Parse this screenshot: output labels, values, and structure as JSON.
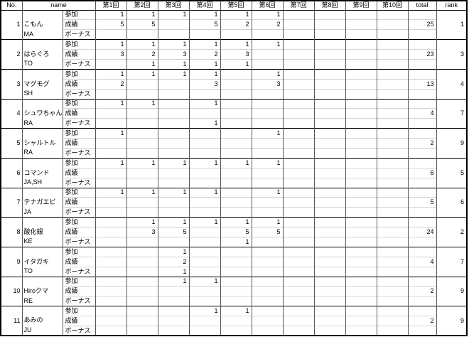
{
  "header": {
    "no": "No.",
    "name": "name",
    "rounds": [
      "第1回",
      "第2回",
      "第3回",
      "第4回",
      "第5回",
      "第6回",
      "第7回",
      "第8回",
      "第9回",
      "第10回"
    ],
    "total": "total",
    "rank": "rank"
  },
  "sublabels": [
    "参加",
    "成績",
    "ボーナス"
  ],
  "players": [
    {
      "no": "1",
      "name": "こもん",
      "code": "MA",
      "sanka": [
        "1",
        "1",
        "1",
        "1",
        "1",
        "1",
        "",
        "",
        "",
        ""
      ],
      "seiseki": [
        "5",
        "5",
        "",
        "5",
        "2",
        "2",
        "",
        "",
        "",
        ""
      ],
      "bonus": [
        "",
        "",
        "",
        "",
        "",
        "",
        "",
        "",
        "",
        ""
      ],
      "total": "25",
      "rank": "1"
    },
    {
      "no": "2",
      "name": "はらぐろ",
      "code": "TO",
      "sanka": [
        "1",
        "1",
        "1",
        "1",
        "1",
        "1",
        "",
        "",
        "",
        ""
      ],
      "seiseki": [
        "3",
        "2",
        "3",
        "2",
        "3",
        "",
        "",
        "",
        "",
        ""
      ],
      "bonus": [
        "",
        "1",
        "1",
        "1",
        "1",
        "",
        "",
        "",
        "",
        ""
      ],
      "total": "23",
      "rank": "3"
    },
    {
      "no": "3",
      "name": "マグモグ",
      "code": "SH",
      "sanka": [
        "1",
        "1",
        "1",
        "1",
        "",
        "1",
        "",
        "",
        "",
        ""
      ],
      "seiseki": [
        "2",
        "",
        "",
        "3",
        "",
        "3",
        "",
        "",
        "",
        ""
      ],
      "bonus": [
        "",
        "",
        "",
        "",
        "",
        "",
        "",
        "",
        "",
        ""
      ],
      "total": "13",
      "rank": "4"
    },
    {
      "no": "4",
      "name": "シュワちゃん",
      "code": "RA",
      "sanka": [
        "1",
        "1",
        "",
        "1",
        "",
        "",
        "",
        "",
        "",
        ""
      ],
      "seiseki": [
        "",
        "",
        "",
        "",
        "",
        "",
        "",
        "",
        "",
        ""
      ],
      "bonus": [
        "",
        "",
        "",
        "1",
        "",
        "",
        "",
        "",
        "",
        ""
      ],
      "total": "4",
      "rank": "7"
    },
    {
      "no": "5",
      "name": "シャルトル",
      "code": "RA",
      "sanka": [
        "1",
        "",
        "",
        "",
        "",
        "1",
        "",
        "",
        "",
        ""
      ],
      "seiseki": [
        "",
        "",
        "",
        "",
        "",
        "",
        "",
        "",
        "",
        ""
      ],
      "bonus": [
        "",
        "",
        "",
        "",
        "",
        "",
        "",
        "",
        "",
        ""
      ],
      "total": "2",
      "rank": "9"
    },
    {
      "no": "6",
      "name": "コマンド",
      "code": "JA,SH",
      "sanka": [
        "1",
        "1",
        "1",
        "1",
        "1",
        "1",
        "",
        "",
        "",
        ""
      ],
      "seiseki": [
        "",
        "",
        "",
        "",
        "",
        "",
        "",
        "",
        "",
        ""
      ],
      "bonus": [
        "",
        "",
        "",
        "",
        "",
        "",
        "",
        "",
        "",
        ""
      ],
      "total": "6",
      "rank": "5"
    },
    {
      "no": "7",
      "name": "テナガエビ",
      "code": "JA",
      "sanka": [
        "1",
        "1",
        "1",
        "1",
        "",
        "1",
        "",
        "",
        "",
        ""
      ],
      "seiseki": [
        "",
        "",
        "",
        "",
        "",
        "",
        "",
        "",
        "",
        ""
      ],
      "bonus": [
        "",
        "",
        "",
        "",
        "",
        "",
        "",
        "",
        "",
        ""
      ],
      "total": "5",
      "rank": "6"
    },
    {
      "no": "8",
      "name": "酸化銀",
      "code": "KE",
      "sanka": [
        "",
        "1",
        "1",
        "1",
        "1",
        "1",
        "",
        "",
        "",
        ""
      ],
      "seiseki": [
        "",
        "3",
        "5",
        "",
        "5",
        "5",
        "",
        "",
        "",
        ""
      ],
      "bonus": [
        "",
        "",
        "",
        "",
        "1",
        "",
        "",
        "",
        "",
        ""
      ],
      "total": "24",
      "rank": "2"
    },
    {
      "no": "9",
      "name": "イタガキ",
      "code": "TO",
      "sanka": [
        "",
        "",
        "1",
        "",
        "",
        "",
        "",
        "",
        "",
        ""
      ],
      "seiseki": [
        "",
        "",
        "2",
        "",
        "",
        "",
        "",
        "",
        "",
        ""
      ],
      "bonus": [
        "",
        "",
        "1",
        "",
        "",
        "",
        "",
        "",
        "",
        ""
      ],
      "total": "4",
      "rank": "7"
    },
    {
      "no": "10",
      "name": "Hiroクマ",
      "code": "RE",
      "sanka": [
        "",
        "",
        "1",
        "1",
        "",
        "",
        "",
        "",
        "",
        ""
      ],
      "seiseki": [
        "",
        "",
        "",
        "",
        "",
        "",
        "",
        "",
        "",
        ""
      ],
      "bonus": [
        "",
        "",
        "",
        "",
        "",
        "",
        "",
        "",
        "",
        ""
      ],
      "total": "2",
      "rank": "9"
    },
    {
      "no": "11",
      "name": "あみの",
      "code": "JU",
      "sanka": [
        "",
        "",
        "",
        "1",
        "1",
        "",
        "",
        "",
        "",
        ""
      ],
      "seiseki": [
        "",
        "",
        "",
        "",
        "",
        "",
        "",
        "",
        "",
        ""
      ],
      "bonus": [
        "",
        "",
        "",
        "",
        "",
        "",
        "",
        "",
        "",
        ""
      ],
      "total": "2",
      "rank": "9"
    }
  ]
}
